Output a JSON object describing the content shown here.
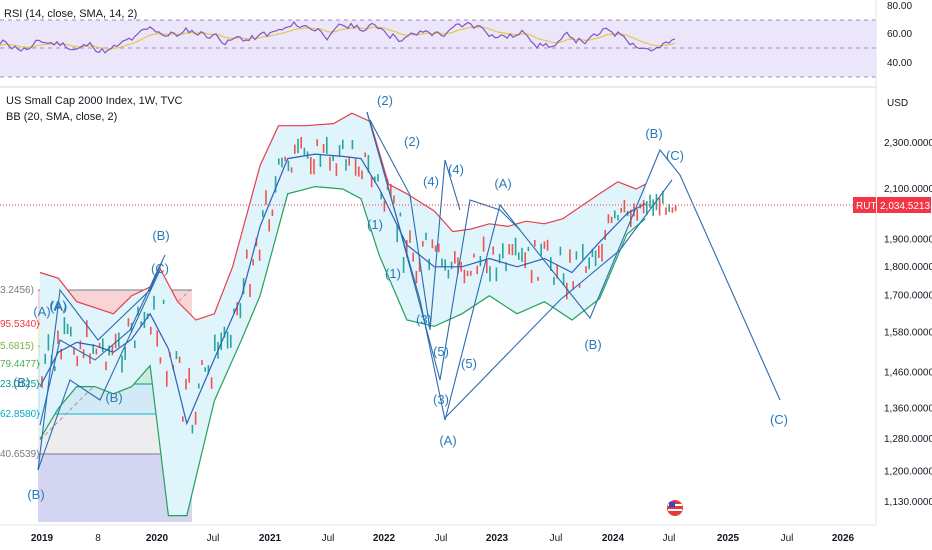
{
  "header": {
    "title": "US Small Cap 2000 Index, 1W, TVC",
    "indicator": "BB (20, SMA, close, 2)",
    "rsi_label": "RSI (14, close, SMA, 14, 2)",
    "currency": "USD"
  },
  "colors": {
    "bb_upper": "#e53f4c",
    "bb_basis": "#2f5fb8",
    "bb_lower": "#22a35a",
    "bb_fill": "#dff4fb",
    "rsi_line": "#7e57c2",
    "rsi_ma": "#e6c84a",
    "rsi_band": "#ece6fb",
    "wave_line": "#2b6cb0",
    "wave_text": "#2a7ab8",
    "price_tag": "#f23645",
    "candle_up": "#26a69a",
    "candle_down": "#ef5350"
  },
  "price_tag": {
    "symbol": "RUT",
    "value": "2,034.5213"
  },
  "rsi_axis_labels": [
    "80.00",
    "60.00",
    "40.00"
  ],
  "price_axis_labels": [
    "2,300.0000",
    "2,100.0000",
    "1,900.0000",
    "1,800.0000",
    "1,700.0000",
    "1,580.0000",
    "1,460.0000",
    "1,360.0000",
    "1,280.0000",
    "1,200.0000",
    "1,130.0000"
  ],
  "time_axis_labels": [
    "2019",
    "8",
    "2020",
    "Jul",
    "2021",
    "Jul",
    "2022",
    "Jul",
    "2023",
    "Jul",
    "2024",
    "Jul",
    "2025",
    "Jul",
    "2026"
  ],
  "fib_labels": [
    "3.2456)",
    "(A)",
    "95.5340)",
    "5.6815)",
    "79.4477)",
    "(B)",
    "23.0125)",
    "62.8580)",
    "40.6539)"
  ],
  "wave_labels": [
    "(2)",
    "(B)",
    "(C)",
    "(2)",
    "(4)",
    "(4)",
    "(A)",
    "(1)",
    "(1)",
    "(3)",
    "(5)",
    "(5)",
    "(3)",
    "(A)",
    "(B)",
    "(C)",
    "(B)",
    "(C)",
    "(A)",
    "(B)",
    "(A)",
    "(B)"
  ],
  "chart_data": {
    "type": "candlestick",
    "symbol": "US Small Cap 2000 Index, 1W, TVC",
    "timeframe": "1W",
    "x_range": [
      "2019-01",
      "2026-03"
    ],
    "y_range": [
      1100,
      2500
    ],
    "y_scale": "log",
    "last_price": 2034.5213,
    "series": [
      {
        "name": "BB upper",
        "x": [
          "2019-01",
          "2019-03",
          "2019-05",
          "2019-07",
          "2019-09",
          "2019-11",
          "2020-01",
          "2020-02",
          "2020-04",
          "2020-06",
          "2020-08",
          "2020-10",
          "2021-01",
          "2021-03",
          "2021-06",
          "2021-09",
          "2021-11",
          "2022-01",
          "2022-03",
          "2022-05",
          "2022-08",
          "2022-10",
          "2022-12",
          "2023-02",
          "2023-04",
          "2023-06",
          "2023-08",
          "2023-10",
          "2023-12",
          "2024-02",
          "2024-04",
          "2024-06",
          "2024-07"
        ],
        "values": [
          1780,
          1760,
          1680,
          1660,
          1640,
          1700,
          1730,
          1800,
          1680,
          1620,
          1640,
          1800,
          2200,
          2380,
          2380,
          2390,
          2440,
          2400,
          2120,
          2080,
          2010,
          1930,
          1940,
          1960,
          1950,
          1970,
          1960,
          1980,
          2030,
          2080,
          2130,
          2100,
          2120
        ]
      },
      {
        "name": "BB basis",
        "x": [
          "2019-01",
          "2019-03",
          "2019-05",
          "2019-07",
          "2019-09",
          "2019-11",
          "2020-01",
          "2020-03",
          "2020-05",
          "2020-08",
          "2020-11",
          "2021-01",
          "2021-04",
          "2021-07",
          "2021-10",
          "2021-12",
          "2022-02",
          "2022-05",
          "2022-08",
          "2022-11",
          "2023-02",
          "2023-05",
          "2023-08",
          "2023-11",
          "2024-02",
          "2024-05",
          "2024-07"
        ],
        "values": [
          1420,
          1520,
          1550,
          1540,
          1520,
          1560,
          1640,
          1530,
          1320,
          1500,
          1700,
          1950,
          2230,
          2250,
          2240,
          2230,
          2100,
          1880,
          1800,
          1800,
          1830,
          1800,
          1830,
          1780,
          1890,
          2000,
          2040
        ]
      },
      {
        "name": "BB lower",
        "x": [
          "2019-01",
          "2019-03",
          "2019-05",
          "2019-07",
          "2019-09",
          "2019-11",
          "2020-01",
          "2020-03",
          "2020-05",
          "2020-08",
          "2020-11",
          "2021-01",
          "2021-04",
          "2021-07",
          "2021-10",
          "2021-12",
          "2022-02",
          "2022-05",
          "2022-08",
          "2022-11",
          "2023-02",
          "2023-05",
          "2023-08",
          "2023-11",
          "2024-02",
          "2024-05",
          "2024-07"
        ],
        "values": [
          1280,
          1360,
          1420,
          1420,
          1400,
          1420,
          1480,
          1100,
          1100,
          1380,
          1560,
          1700,
          2080,
          2110,
          2100,
          2060,
          1840,
          1620,
          1600,
          1640,
          1700,
          1640,
          1680,
          1620,
          1690,
          1920,
          1980
        ]
      }
    ]
  }
}
